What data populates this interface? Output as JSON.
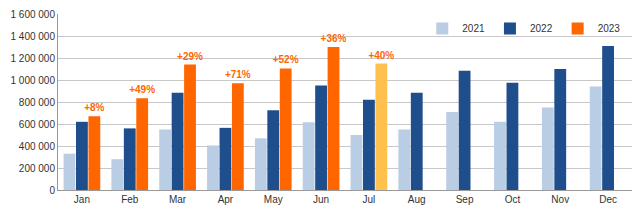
{
  "chart_data": {
    "type": "bar",
    "categories": [
      "Jan",
      "Feb",
      "Mar",
      "Apr",
      "May",
      "Jun",
      "Jul",
      "Aug",
      "Sep",
      "Oct",
      "Nov",
      "Dec"
    ],
    "series": [
      {
        "name": "2021",
        "color": "#b9cde5",
        "values": [
          330000,
          280000,
          550000,
          405000,
          470000,
          615000,
          500000,
          550000,
          710000,
          620000,
          750000,
          940000
        ]
      },
      {
        "name": "2022",
        "color": "#1f4e8c",
        "values": [
          620000,
          560000,
          885000,
          565000,
          725000,
          950000,
          820000,
          885000,
          1085000,
          975000,
          1100000,
          1310000
        ]
      },
      {
        "name": "2023",
        "color": "#ff6600",
        "colors": [
          "#ff6600",
          "#ff6600",
          "#ff6600",
          "#ff6600",
          "#ff6600",
          "#ff6600",
          "#ffc14d",
          "#ff6600",
          "#ff6600",
          "#ff6600",
          "#ff6600",
          "#ff6600"
        ],
        "values": [
          670000,
          835000,
          1140000,
          970000,
          1105000,
          1300000,
          1150000,
          null,
          null,
          null,
          null,
          null
        ],
        "annotations": [
          "+8%",
          "+49%",
          "+29%",
          "+71%",
          "+52%",
          "+36%",
          "+40%",
          null,
          null,
          null,
          null,
          null
        ]
      }
    ],
    "ylim": [
      0,
      1600000
    ],
    "yticks": [
      0,
      {
        "value": 200000,
        "label": "200 000"
      },
      {
        "value": 400000,
        "label": "400 000"
      },
      {
        "value": 600000,
        "label": "600 000"
      },
      {
        "value": 800000,
        "label": "800 000"
      },
      {
        "value": 1000000,
        "label": "1 000 000"
      },
      {
        "value": 1200000,
        "label": "1 200 000"
      },
      {
        "value": 1400000,
        "label": "1 400 000"
      },
      {
        "value": 1600000,
        "label": "1 600 000"
      }
    ],
    "grid": true,
    "legend": "top right"
  }
}
